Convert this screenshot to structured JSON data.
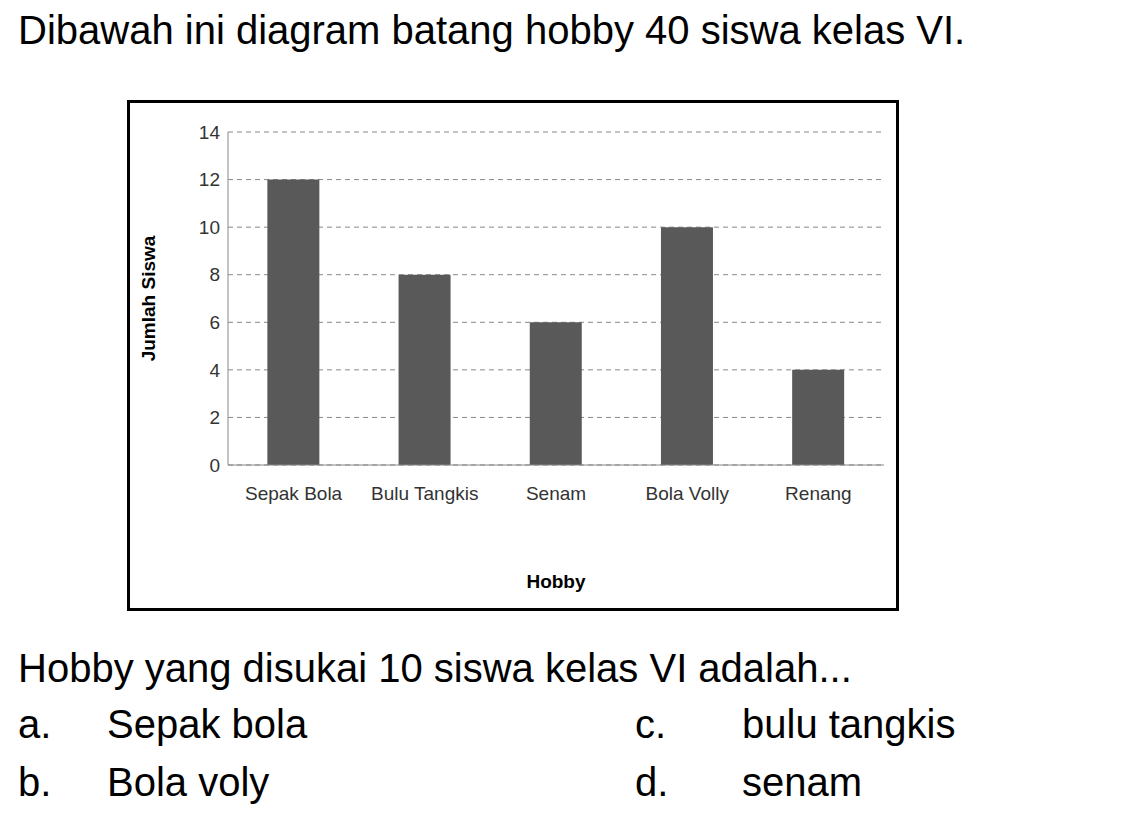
{
  "question": {
    "intro": "Dibawah ini diagram batang hobby 40 siswa kelas VI.",
    "prompt": "Hobby yang disukai 10 siswa kelas VI adalah...",
    "options": [
      {
        "letter": "a.",
        "text": "Sepak bola"
      },
      {
        "letter": "b.",
        "text": "Bola voly"
      },
      {
        "letter": "c.",
        "text": "bulu tangkis"
      },
      {
        "letter": "d.",
        "text": "senam"
      }
    ]
  },
  "chart_data": {
    "type": "bar",
    "categories": [
      "Sepak Bola",
      "Bulu Tangkis",
      "Senam",
      "Bola Volly",
      "Renang"
    ],
    "values": [
      12,
      8,
      6,
      10,
      4
    ],
    "color": "#595959",
    "ylim": [
      0,
      14
    ],
    "yticks": [
      0,
      2,
      4,
      6,
      8,
      10,
      12,
      14
    ],
    "grid": true,
    "x_label": "Hobby",
    "y_label": "Jumlah Siswa"
  }
}
